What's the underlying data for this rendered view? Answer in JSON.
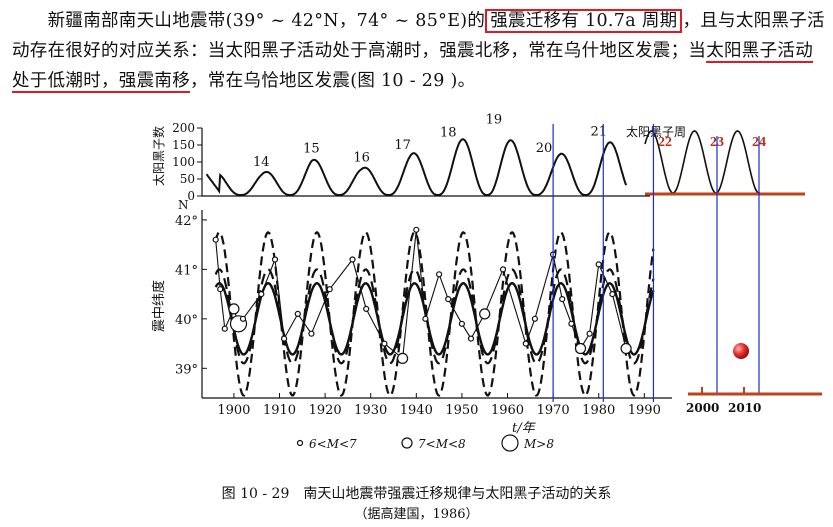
{
  "paragraph": {
    "part1": "新疆南部南天山地震带(39° ~ 42°N，74° ~ 85°E)的",
    "boxed": "强震迁移有 10.7a 周期",
    "part2": "，且与太阳黑子活动存在很好的对应关系：当太阳黑子活动处于高潮时，强震北移，常在乌什地区发震；当",
    "underlined": "太阳黑子活动处于低潮时，强震南移",
    "part3": "，常在乌恰地区发震(图 10 - 29 )。"
  },
  "colors": {
    "highlight_red": "#e01b24",
    "axis_red": "#c0421a",
    "blue_line": "#1a2bd6",
    "ball": "#e53030"
  },
  "chart_data": [
    {
      "type": "line",
      "ylabel": "太阳黑子数",
      "yticks": [
        "200",
        "150",
        "100",
        "50",
        "0"
      ],
      "ylim": [
        0,
        200
      ],
      "series_label": "太阳黑子周",
      "cycles": [
        {
          "number": "14",
          "peak_year": 1906,
          "peak": 64
        },
        {
          "number": "15",
          "peak_year": 1917,
          "peak": 105
        },
        {
          "number": "16",
          "peak_year": 1928,
          "peak": 78
        },
        {
          "number": "17",
          "peak_year": 1937,
          "peak": 114
        },
        {
          "number": "18",
          "peak_year": 1947,
          "peak": 152
        },
        {
          "number": "19",
          "peak_year": 1957,
          "peak": 190
        },
        {
          "number": "20",
          "peak_year": 1968,
          "peak": 106
        },
        {
          "number": "21",
          "peak_year": 1980,
          "peak": 155
        }
      ],
      "predicted_cycles": [
        "22",
        "23",
        "24"
      ],
      "xlim": [
        1893,
        1993
      ]
    },
    {
      "type": "line",
      "ylabel": "震中纬度",
      "yunit": "N",
      "yticks": [
        "42°",
        "41°",
        "40°",
        "39°"
      ],
      "ylim": [
        38.4,
        42.2
      ],
      "xlabel": "t/年",
      "xticks": [
        "1900",
        "1910",
        "1920",
        "1930",
        "1940",
        "1950",
        "1960",
        "1970",
        "1980",
        "1990"
      ],
      "extra_xticks": [
        "2000",
        "2010"
      ],
      "vertical_markers": [
        1970,
        1981,
        1992
      ],
      "legend": [
        {
          "symbol": "small-circle",
          "label": "6<M<7"
        },
        {
          "symbol": "medium-circle",
          "label": "7<M<8"
        },
        {
          "symbol": "large-circle",
          "label": "M>8"
        }
      ]
    }
  ],
  "caption": {
    "title": "图 10 - 29　南天山地震带强震迁移规律与太阳黑子活动的关系",
    "source": "（据高建国，1986）"
  }
}
